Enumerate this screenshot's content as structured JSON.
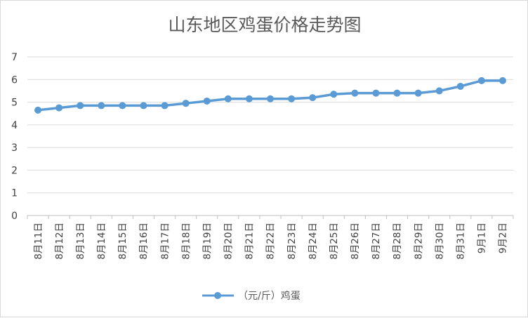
{
  "chart_data": {
    "type": "line",
    "title": "山东地区鸡蛋价格走势图",
    "xlabel": "",
    "ylabel": "",
    "ylim": [
      0,
      7
    ],
    "yticks": [
      "0",
      "1",
      "2",
      "3",
      "4",
      "5",
      "6",
      "7"
    ],
    "grid": true,
    "legend_position": "bottom",
    "categories": [
      "8月11日",
      "8月12日",
      "8月13日",
      "8月14日",
      "8月15日",
      "8月16日",
      "8月17日",
      "8月18日",
      "8月19日",
      "8月20日",
      "8月21日",
      "8月22日",
      "8月23日",
      "8月24日",
      "8月25日",
      "8月26日",
      "8月27日",
      "8月28日",
      "8月29日",
      "8月30日",
      "8月31日",
      "9月1日",
      "9月2日"
    ],
    "series": [
      {
        "name": "（元/斤）鸡蛋",
        "color": "#5b9bd5",
        "values": [
          4.65,
          4.75,
          4.85,
          4.85,
          4.85,
          4.85,
          4.85,
          4.95,
          5.05,
          5.15,
          5.15,
          5.15,
          5.15,
          5.2,
          5.35,
          5.4,
          5.4,
          5.4,
          5.4,
          5.5,
          5.7,
          5.95,
          5.95
        ]
      }
    ]
  }
}
